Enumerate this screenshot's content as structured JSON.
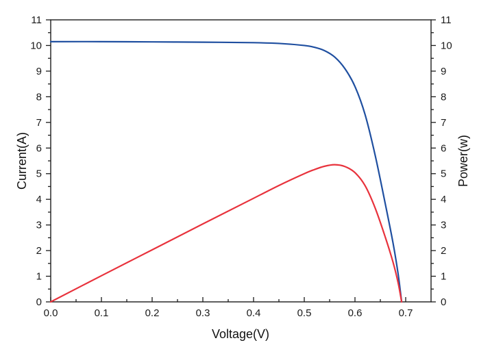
{
  "chart_data": {
    "type": "line",
    "xlabel": "Voltage(V)",
    "ylabel": "Current(A)",
    "y2label": "Power(w)",
    "xlim": [
      0,
      0.75
    ],
    "ylim": [
      0,
      11
    ],
    "y2lim": [
      0,
      11
    ],
    "xticks": [
      "0.0",
      "0.1",
      "0.2",
      "0.3",
      "0.4",
      "0.5",
      "0.6",
      "0.7"
    ],
    "yticks": [
      "0",
      "1",
      "2",
      "3",
      "4",
      "5",
      "6",
      "7",
      "8",
      "9",
      "10",
      "11"
    ],
    "y2ticks": [
      "0",
      "1",
      "2",
      "3",
      "4",
      "5",
      "6",
      "7",
      "8",
      "9",
      "10",
      "11"
    ],
    "grid": false,
    "legend": "none",
    "series": [
      {
        "axis": "left",
        "color": "#1f4fa0",
        "points": [
          [
            0.0,
            10.15
          ],
          [
            0.1,
            10.15
          ],
          [
            0.2,
            10.14
          ],
          [
            0.3,
            10.13
          ],
          [
            0.4,
            10.11
          ],
          [
            0.45,
            10.08
          ],
          [
            0.5,
            10.0
          ],
          [
            0.52,
            9.93
          ],
          [
            0.54,
            9.8
          ],
          [
            0.56,
            9.55
          ],
          [
            0.58,
            9.1
          ],
          [
            0.6,
            8.4
          ],
          [
            0.62,
            7.3
          ],
          [
            0.64,
            5.7
          ],
          [
            0.66,
            3.8
          ],
          [
            0.675,
            2.3
          ],
          [
            0.685,
            1.1
          ],
          [
            0.692,
            0.0
          ]
        ]
      },
      {
        "axis": "right",
        "color": "#e8323c",
        "points": [
          [
            0.0,
            0.0
          ],
          [
            0.1,
            1.02
          ],
          [
            0.2,
            2.03
          ],
          [
            0.3,
            3.04
          ],
          [
            0.4,
            4.04
          ],
          [
            0.45,
            4.54
          ],
          [
            0.5,
            5.0
          ],
          [
            0.52,
            5.16
          ],
          [
            0.54,
            5.29
          ],
          [
            0.56,
            5.35
          ],
          [
            0.58,
            5.28
          ],
          [
            0.6,
            5.04
          ],
          [
            0.62,
            4.53
          ],
          [
            0.64,
            3.65
          ],
          [
            0.66,
            2.51
          ],
          [
            0.675,
            1.55
          ],
          [
            0.685,
            0.75
          ],
          [
            0.692,
            0.0
          ]
        ]
      }
    ]
  }
}
